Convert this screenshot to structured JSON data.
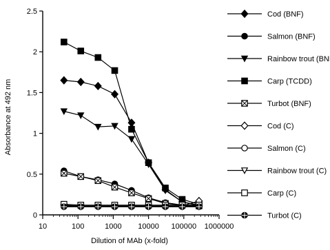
{
  "chart_data": {
    "type": "line",
    "xlabel": "Dilution of MAb (x-fold)",
    "ylabel": "Absorbance at 492 nm",
    "xscale": "log",
    "xlim": [
      10,
      1000000
    ],
    "ylim": [
      0,
      2.5
    ],
    "xticks": [
      10,
      100,
      1000,
      10000,
      100000,
      1000000
    ],
    "xtick_labels": [
      "10",
      "100",
      "1000",
      "10000",
      "100000",
      "1000000"
    ],
    "yticks": [
      0,
      0.5,
      1,
      1.5,
      2,
      2.5
    ],
    "ytick_labels": [
      "0",
      "0.5",
      "1",
      "1.5",
      "2",
      "2.5"
    ],
    "grid": false,
    "legend_position": "right",
    "x": [
      40,
      120,
      370,
      1100,
      3300,
      10000,
      30000,
      90000,
      270000
    ],
    "series": [
      {
        "name": "Cod (BNF)",
        "marker": "diamond-filled",
        "values": [
          1.65,
          1.63,
          1.58,
          1.48,
          1.13,
          0.64,
          0.31,
          0.16,
          0.11
        ]
      },
      {
        "name": "Salmon (BNF)",
        "marker": "circle-filled",
        "values": [
          0.54,
          0.47,
          0.43,
          0.38,
          0.3,
          0.21,
          0.15,
          0.12,
          0.11
        ]
      },
      {
        "name": "Rainbow trout (BNF)",
        "marker": "triangle-down-filled",
        "values": [
          1.27,
          1.22,
          1.08,
          1.09,
          0.93,
          0.62,
          0.3,
          0.16,
          0.12
        ]
      },
      {
        "name": "Carp (TCDD)",
        "marker": "square-filled",
        "values": [
          2.12,
          2.01,
          1.93,
          1.77,
          1.05,
          0.64,
          0.33,
          0.19,
          0.13
        ]
      },
      {
        "name": "Turbot (BNF)",
        "marker": "square-x",
        "values": [
          0.51,
          0.47,
          0.42,
          0.34,
          0.27,
          0.2,
          0.14,
          0.12,
          0.11
        ]
      },
      {
        "name": "Cod (C)",
        "marker": "diamond-open",
        "values": [
          0.12,
          0.11,
          0.11,
          0.11,
          0.11,
          0.11,
          0.11,
          0.11,
          0.17
        ]
      },
      {
        "name": "Salmon (C)",
        "marker": "circle-open",
        "values": [
          0.11,
          0.11,
          0.11,
          0.11,
          0.11,
          0.11,
          0.11,
          0.11,
          0.11
        ]
      },
      {
        "name": "Rainbow trout (C)",
        "marker": "triangle-down-open",
        "values": [
          0.1,
          0.1,
          0.1,
          0.1,
          0.1,
          0.1,
          0.1,
          0.1,
          0.1
        ]
      },
      {
        "name": "Carp (C)",
        "marker": "square-open",
        "values": [
          0.13,
          0.12,
          0.12,
          0.12,
          0.12,
          0.12,
          0.12,
          0.12,
          0.12
        ]
      },
      {
        "name": "Turbot (C)",
        "marker": "circle-cross",
        "values": [
          0.1,
          0.1,
          0.1,
          0.1,
          0.1,
          0.1,
          0.1,
          0.1,
          0.1
        ]
      }
    ]
  }
}
